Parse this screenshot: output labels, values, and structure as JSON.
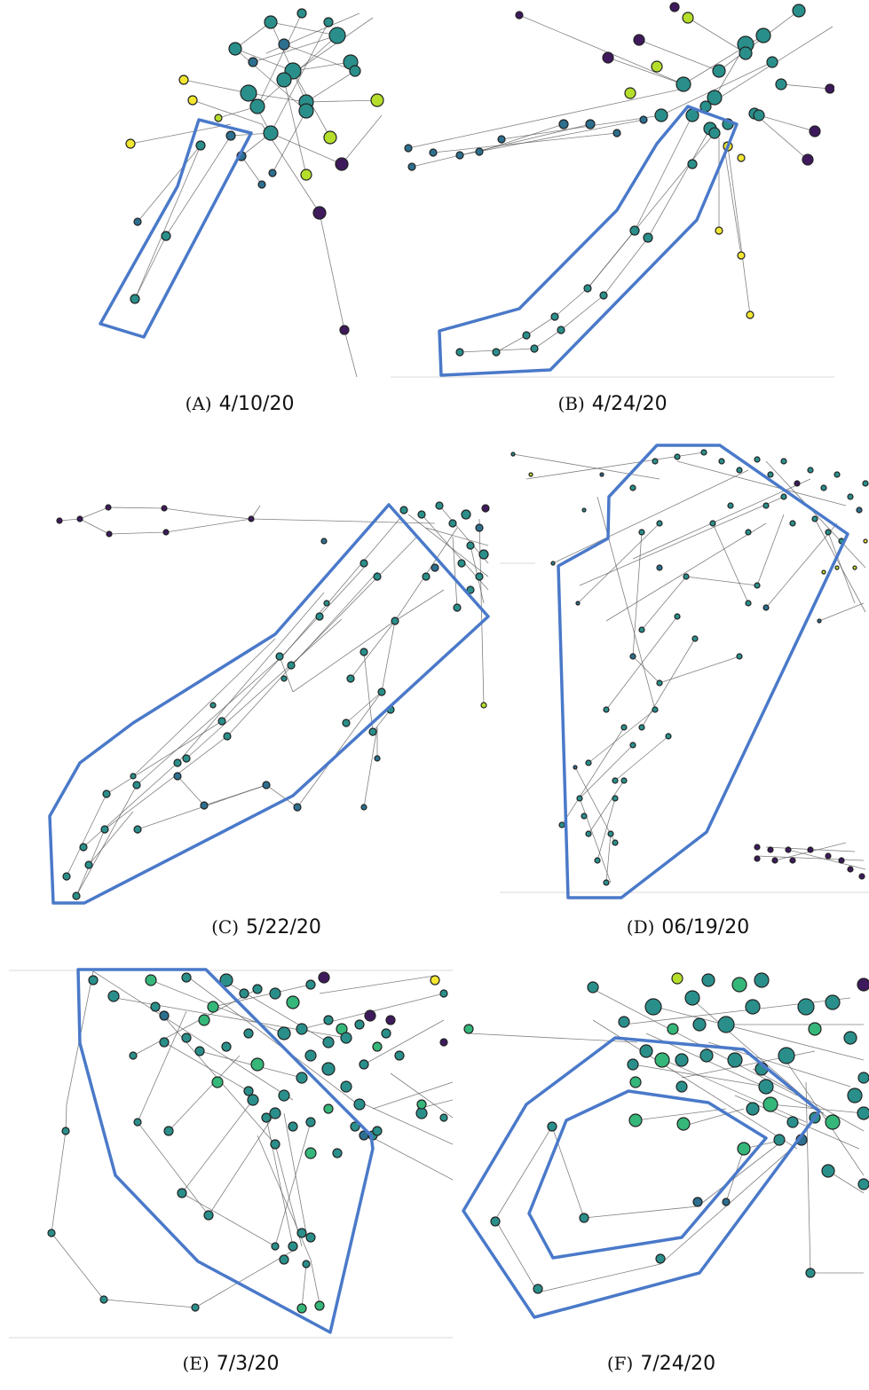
{
  "palette": {
    "dark_purple": "#3e1a5c",
    "teal": "#2a8f8a",
    "blue_teal": "#2d6f8e",
    "green": "#35b779",
    "lime": "#b5de2b",
    "yellow": "#f2e631",
    "hull_blue": "#4a79c9"
  },
  "panels": [
    {
      "id": "a",
      "label": "(A)",
      "date": "4/10/20"
    },
    {
      "id": "b",
      "label": "(B)",
      "date": "4/24/20"
    },
    {
      "id": "c",
      "label": "(C)",
      "date": "5/22/20"
    },
    {
      "id": "d",
      "label": "(D)",
      "date": "06/19/20"
    },
    {
      "id": "e",
      "label": "(E)",
      "date": "7/3/20"
    },
    {
      "id": "f",
      "label": "(F)",
      "date": "7/24/20"
    }
  ]
}
